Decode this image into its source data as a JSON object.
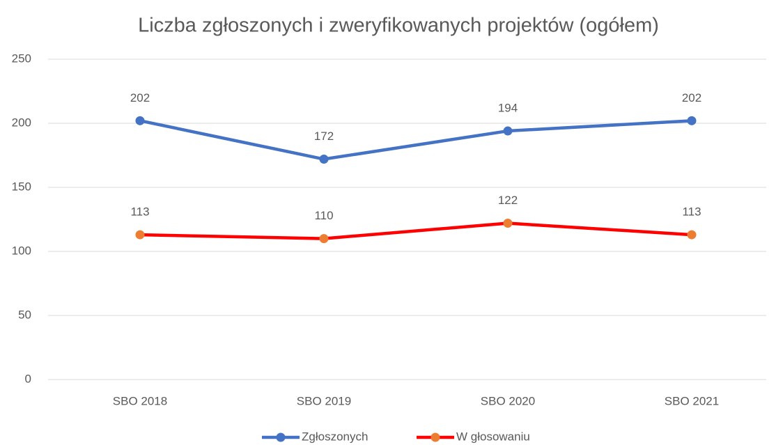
{
  "chart_data": {
    "type": "line",
    "title": "Liczba zgłoszonych i zweryfikowanych projektów (ogółem)",
    "categories": [
      "SBO 2018",
      "SBO 2019",
      "SBO 2020",
      "SBO 2021"
    ],
    "series": [
      {
        "name": "Zgłoszonych",
        "color": "#4472c4",
        "marker_color": "#4472c4",
        "values": [
          202,
          172,
          194,
          202
        ]
      },
      {
        "name": "W głosowaniu",
        "color": "#ff0000",
        "marker_color": "#ed7d31",
        "values": [
          113,
          110,
          122,
          113
        ]
      }
    ],
    "ylim": [
      0,
      250
    ],
    "yticks": [
      0,
      50,
      100,
      150,
      200,
      250
    ],
    "grid": true,
    "legend": "bottom",
    "data_labels": true
  }
}
